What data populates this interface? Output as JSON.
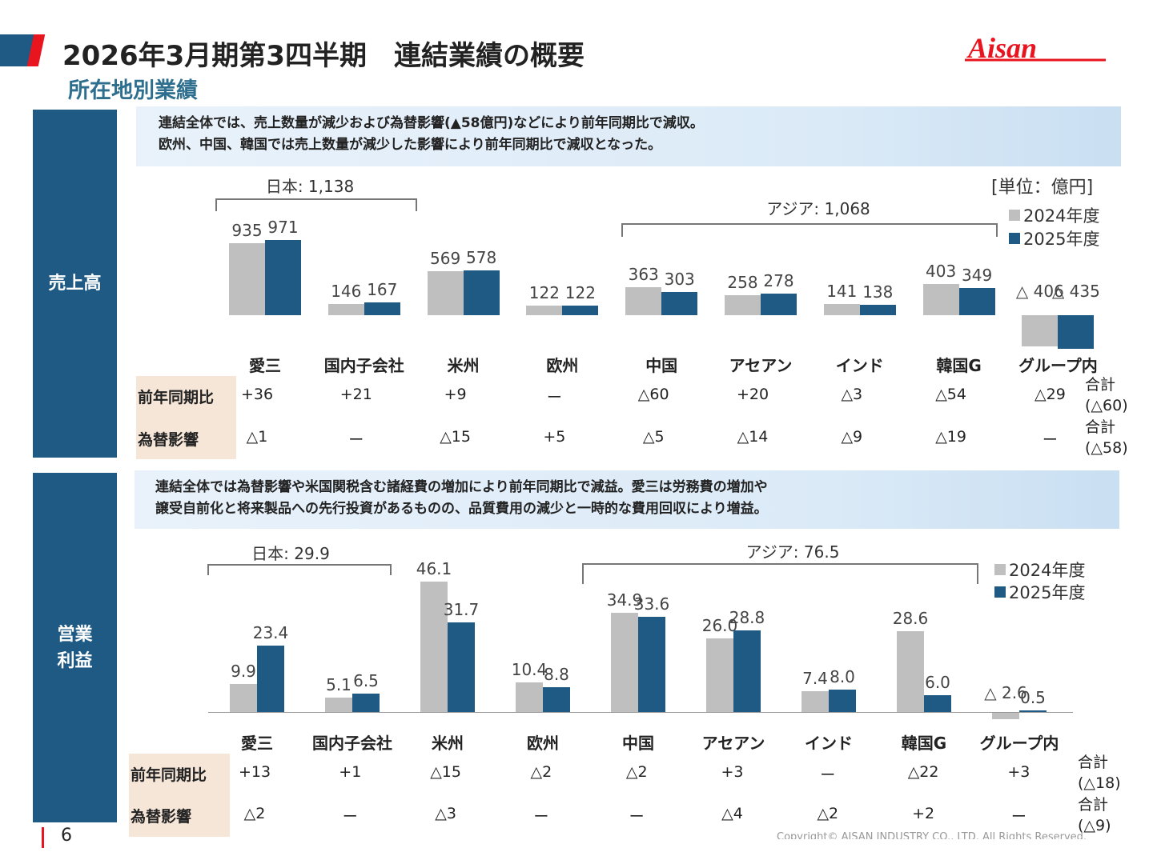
{
  "header": {
    "title": "2026年3月期第3四半期　連結業績の概要",
    "subtitle": "所在地別業績",
    "logo_text": "Aisan"
  },
  "colors": {
    "series_2024": "#bfbfbf",
    "series_2025": "#1f5a85",
    "accent_red": "#e8141e",
    "panel_blue": "#1f5a85"
  },
  "sales": {
    "side_label": "売上高",
    "info": [
      "連結全体では、売上数量が減少および為替影響(▲58億円)などにより前年同期比で減収。",
      "欧州、中国、韓国では売上数量が減少した影響により前年同期比で減収となった。"
    ],
    "unit": "[単位：億円]",
    "legend": [
      "2024年度",
      "2025年度"
    ],
    "bracket_japan": "日本: 1,138",
    "bracket_asia": "アジア: 1,068",
    "row_labels": [
      "前年同期比",
      "為替影響"
    ],
    "yoy": [
      "+36",
      "+21",
      "+9",
      "ー",
      "△60",
      "+20",
      "△3",
      "△54",
      "△29"
    ],
    "fx": [
      "△1",
      "ー",
      "△15",
      "+5",
      "△5",
      "△14",
      "△9",
      "△19",
      "ー"
    ],
    "yoy_total": [
      "合計",
      "(△60)"
    ],
    "fx_total": [
      "合計",
      "(△58)"
    ]
  },
  "profit": {
    "side_label": [
      "営業",
      "利益"
    ],
    "info": [
      "連結全体では為替影響や米国関税含む諸経費の増加により前年同期比で減益。愛三は労務費の増加や",
      "譲受自前化と将来製品への先行投資があるものの、品質費用の減少と一時的な費用回収により増益。"
    ],
    "legend": [
      "2024年度",
      "2025年度"
    ],
    "bracket_japan": "日本: 29.9",
    "bracket_asia": "アジア: 76.5",
    "row_labels": [
      "前年同期比",
      "為替影響"
    ],
    "yoy": [
      "+13",
      "+1",
      "△15",
      "△2",
      "△2",
      "+3",
      "ー",
      "△22",
      "+3"
    ],
    "fx": [
      "△2",
      "ー",
      "△3",
      "ー",
      "ー",
      "△4",
      "△2",
      "+2",
      "ー"
    ],
    "yoy_total": [
      "合計",
      "(△18)"
    ],
    "fx_total": [
      "合計",
      "(△9)"
    ]
  },
  "chart_data": [
    {
      "type": "bar",
      "title": "売上高",
      "ylabel": "",
      "unit": "億円",
      "categories": [
        "愛三",
        "国内子会社",
        "米州",
        "欧州",
        "中国",
        "アセアン",
        "インド",
        "韓国G",
        "グループ内"
      ],
      "series": [
        {
          "name": "2024年度",
          "values": [
            935,
            146,
            569,
            122,
            363,
            258,
            141,
            403,
            -406
          ]
        },
        {
          "name": "2025年度",
          "values": [
            971,
            167,
            578,
            122,
            303,
            278,
            138,
            349,
            -435
          ]
        }
      ],
      "grid": false,
      "legend": "top-right"
    },
    {
      "type": "bar",
      "title": "営業利益",
      "ylabel": "",
      "categories": [
        "愛三",
        "国内子会社",
        "米州",
        "欧州",
        "中国",
        "アセアン",
        "インド",
        "韓国G",
        "グループ内"
      ],
      "series": [
        {
          "name": "2024年度",
          "values": [
            9.9,
            5.1,
            46.1,
            10.4,
            34.9,
            26.0,
            7.4,
            28.6,
            -2.6
          ]
        },
        {
          "name": "2025年度",
          "values": [
            23.4,
            6.5,
            31.7,
            8.8,
            33.6,
            28.8,
            8.0,
            6.0,
            0.5
          ]
        }
      ],
      "grid": false,
      "legend": "top-right"
    }
  ],
  "footer": {
    "page": "6",
    "copyright": "Copyright© AISAN INDUSTRY CO., LTD. All Rights Reserved."
  }
}
